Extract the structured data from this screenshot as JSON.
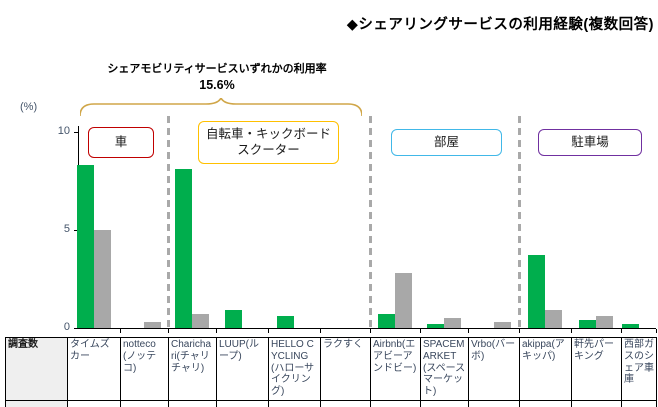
{
  "title": "◆シェアリングサービスの利用経験(複数回答)",
  "annotation": {
    "line1": "シェアモビリティサービスいずれかの利用率",
    "line2": "15.6%"
  },
  "y_axis": {
    "unit_label": "(%)",
    "tick_labels": [
      "10",
      "5",
      "0"
    ],
    "max": 10,
    "min": 0
  },
  "table": {
    "header_label": "調査数"
  },
  "category_boxes": [
    {
      "id": "car",
      "label": "車",
      "border_color": "#C00000"
    },
    {
      "id": "bicycle",
      "label": "自転車・キックボード\nスクーター",
      "border_color": "#FFC000"
    },
    {
      "id": "room",
      "label": "部屋",
      "border_color": "#41B8E8"
    },
    {
      "id": "parking",
      "label": "駐車場",
      "border_color": "#7030A0"
    }
  ],
  "colors": {
    "bar_green": "#00AE4D",
    "bar_gray": "#A8A8A8",
    "brace": "#D0A648"
  },
  "chart_data": {
    "type": "bar",
    "title": "◆シェアリングサービスの利用経験(複数回答)",
    "ylabel": "(%)",
    "ylim": [
      0,
      10
    ],
    "grid": false,
    "legend": "none",
    "annotation": "シェアモビリティサービスいずれかの利用率 15.6%",
    "categories": [
      "タイムズカー",
      "notteco(ノッテコ)",
      "Charichari(チャリチャリ)",
      "LUUP(ループ)",
      "HELLO CYCLING(ハローサイクリング)",
      "ラクすく",
      "Airbnb(エアビーアンドビー)",
      "SPACEMARKET(スペースマーケット)",
      "Vrbo(バーボ)",
      "akippa(アキッパ)",
      "軒先パーキング",
      "西部ガスのシェア車庫"
    ],
    "series": [
      {
        "name": "green",
        "color": "#00AE4D",
        "values": [
          8.3,
          0,
          8.1,
          0.9,
          0.6,
          0,
          0.7,
          0.2,
          0,
          3.7,
          0.4,
          0.2
        ]
      },
      {
        "name": "gray",
        "color": "#A8A8A8",
        "values": [
          5.0,
          0.3,
          0.7,
          0,
          0,
          0,
          2.8,
          0.5,
          0.3,
          0.9,
          0.6,
          0
        ]
      }
    ],
    "groups": [
      {
        "label": "車",
        "columns": [
          0,
          1
        ]
      },
      {
        "label": "自転車・キックボードスクーター",
        "columns": [
          2,
          5
        ]
      },
      {
        "label": "部屋",
        "columns": [
          6,
          8
        ]
      },
      {
        "label": "駐車場",
        "columns": [
          9,
          11
        ]
      }
    ]
  }
}
